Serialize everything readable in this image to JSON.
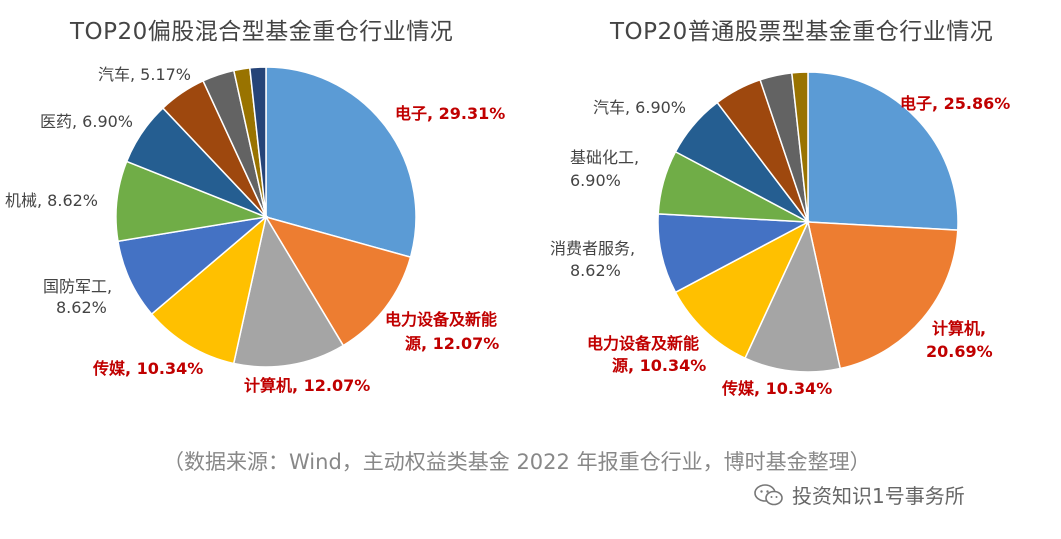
{
  "chart_data": [
    {
      "type": "pie",
      "title": "TOP20偏股混合型基金重仓行业情况",
      "slices": [
        {
          "label": "电子, 29.31%",
          "value": 29.31,
          "color": "#5B9BD5",
          "label_color": "#C00000",
          "bold": true
        },
        {
          "label": "电力设备及新能源, 12.07%",
          "value": 12.07,
          "color": "#ED7D31",
          "label_color": "#C00000",
          "bold": true
        },
        {
          "label": "计算机, 12.07%",
          "value": 12.07,
          "color": "#A5A5A5",
          "label_color": "#C00000",
          "bold": true
        },
        {
          "label": "传媒, 10.34%",
          "value": 10.34,
          "color": "#FFC000",
          "label_color": "#C00000",
          "bold": true
        },
        {
          "label": "国防军工, 8.62%",
          "value": 8.62,
          "color": "#4472C4",
          "label_color": "#444444",
          "bold": false
        },
        {
          "label": "机械, 8.62%",
          "value": 8.62,
          "color": "#70AD47",
          "label_color": "#444444",
          "bold": false
        },
        {
          "label": "医药, 6.90%",
          "value": 6.9,
          "color": "#255E91",
          "label_color": "#444444",
          "bold": false
        },
        {
          "label": "汽车, 5.17%",
          "value": 5.17,
          "color": "#9E480E",
          "label_color": "#444444",
          "bold": false
        },
        {
          "label": "",
          "value": 3.45,
          "color": "#636363",
          "label_color": "#444444",
          "bold": false
        },
        {
          "label": "",
          "value": 1.72,
          "color": "#997300",
          "label_color": "#444444",
          "bold": false
        },
        {
          "label": "",
          "value": 1.72,
          "color": "#264478",
          "label_color": "#444444",
          "bold": false
        }
      ]
    },
    {
      "type": "pie",
      "title": "TOP20普通股票型基金重仓行业情况",
      "slices": [
        {
          "label": "电子, 25.86%",
          "value": 25.86,
          "color": "#5B9BD5",
          "label_color": "#C00000",
          "bold": true
        },
        {
          "label": "计算机, 20.69%",
          "value": 20.69,
          "color": "#ED7D31",
          "label_color": "#C00000",
          "bold": true
        },
        {
          "label": "传媒, 10.34%",
          "value": 10.34,
          "color": "#A5A5A5",
          "label_color": "#C00000",
          "bold": true
        },
        {
          "label": "电力设备及新能源, 10.34%",
          "value": 10.34,
          "color": "#FFC000",
          "label_color": "#C00000",
          "bold": true
        },
        {
          "label": "消费者服务, 8.62%",
          "value": 8.62,
          "color": "#4472C4",
          "label_color": "#444444",
          "bold": false
        },
        {
          "label": "基础化工, 6.90%",
          "value": 6.9,
          "color": "#70AD47",
          "label_color": "#444444",
          "bold": false
        },
        {
          "label": "汽车, 6.90%",
          "value": 6.9,
          "color": "#255E91",
          "label_color": "#444444",
          "bold": false
        },
        {
          "label": "",
          "value": 5.17,
          "color": "#9E480E",
          "label_color": "#444444",
          "bold": false
        },
        {
          "label": "",
          "value": 3.45,
          "color": "#636363",
          "label_color": "#444444",
          "bold": false
        },
        {
          "label": "",
          "value": 1.72,
          "color": "#997300",
          "label_color": "#444444",
          "bold": false
        }
      ]
    }
  ],
  "footer": {
    "source": "（数据来源：Wind，主动权益类基金 2022 年报重仓行业，博时基金整理）",
    "watermark": "投资知识1号事务所",
    "watermark_icon": "wechat-icon"
  }
}
